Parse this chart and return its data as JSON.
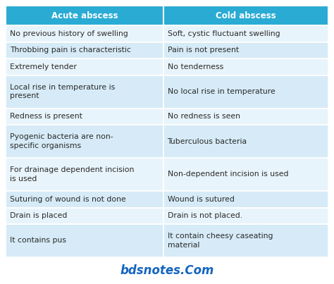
{
  "header": [
    "Acute abscess",
    "Cold abscess"
  ],
  "rows": [
    [
      "No previous history of swelling",
      "Soft, cystic fluctuant swelling"
    ],
    [
      "Throbbing pain is characteristic",
      "Pain is not present"
    ],
    [
      "Extremely tender",
      "No tenderness"
    ],
    [
      "Local rise in temperature is\npresent",
      "No local rise in temperature"
    ],
    [
      "Redness is present",
      "No redness is seen"
    ],
    [
      "Pyogenic bacteria are non-\nspecific organisms",
      "Tuberculous bacteria"
    ],
    [
      "For drainage dependent incision\nis used",
      "Non-dependent incision is used"
    ],
    [
      "Suturing of wound is not done",
      "Wound is sutured"
    ],
    [
      "Drain is placed",
      "Drain is not placed."
    ],
    [
      "It contains pus",
      "It contain cheesy caseating\nmaterial"
    ]
  ],
  "header_bg": "#29ABD4",
  "header_text_color": "#ffffff",
  "row_bg_light": "#E8F4FB",
  "row_bg_mid": "#D6EBF7",
  "row_text_color": "#2a2a2a",
  "border_color": "#ffffff",
  "watermark_text": "bdsnotes.Com",
  "watermark_color": "#1565C0",
  "fig_bg": "#ffffff",
  "col_split": 0.488,
  "header_fontsize": 8.5,
  "row_fontsize": 7.8,
  "watermark_fontsize": 12,
  "row_line_counts": [
    1,
    1,
    1,
    2,
    1,
    2,
    2,
    1,
    1,
    2
  ]
}
